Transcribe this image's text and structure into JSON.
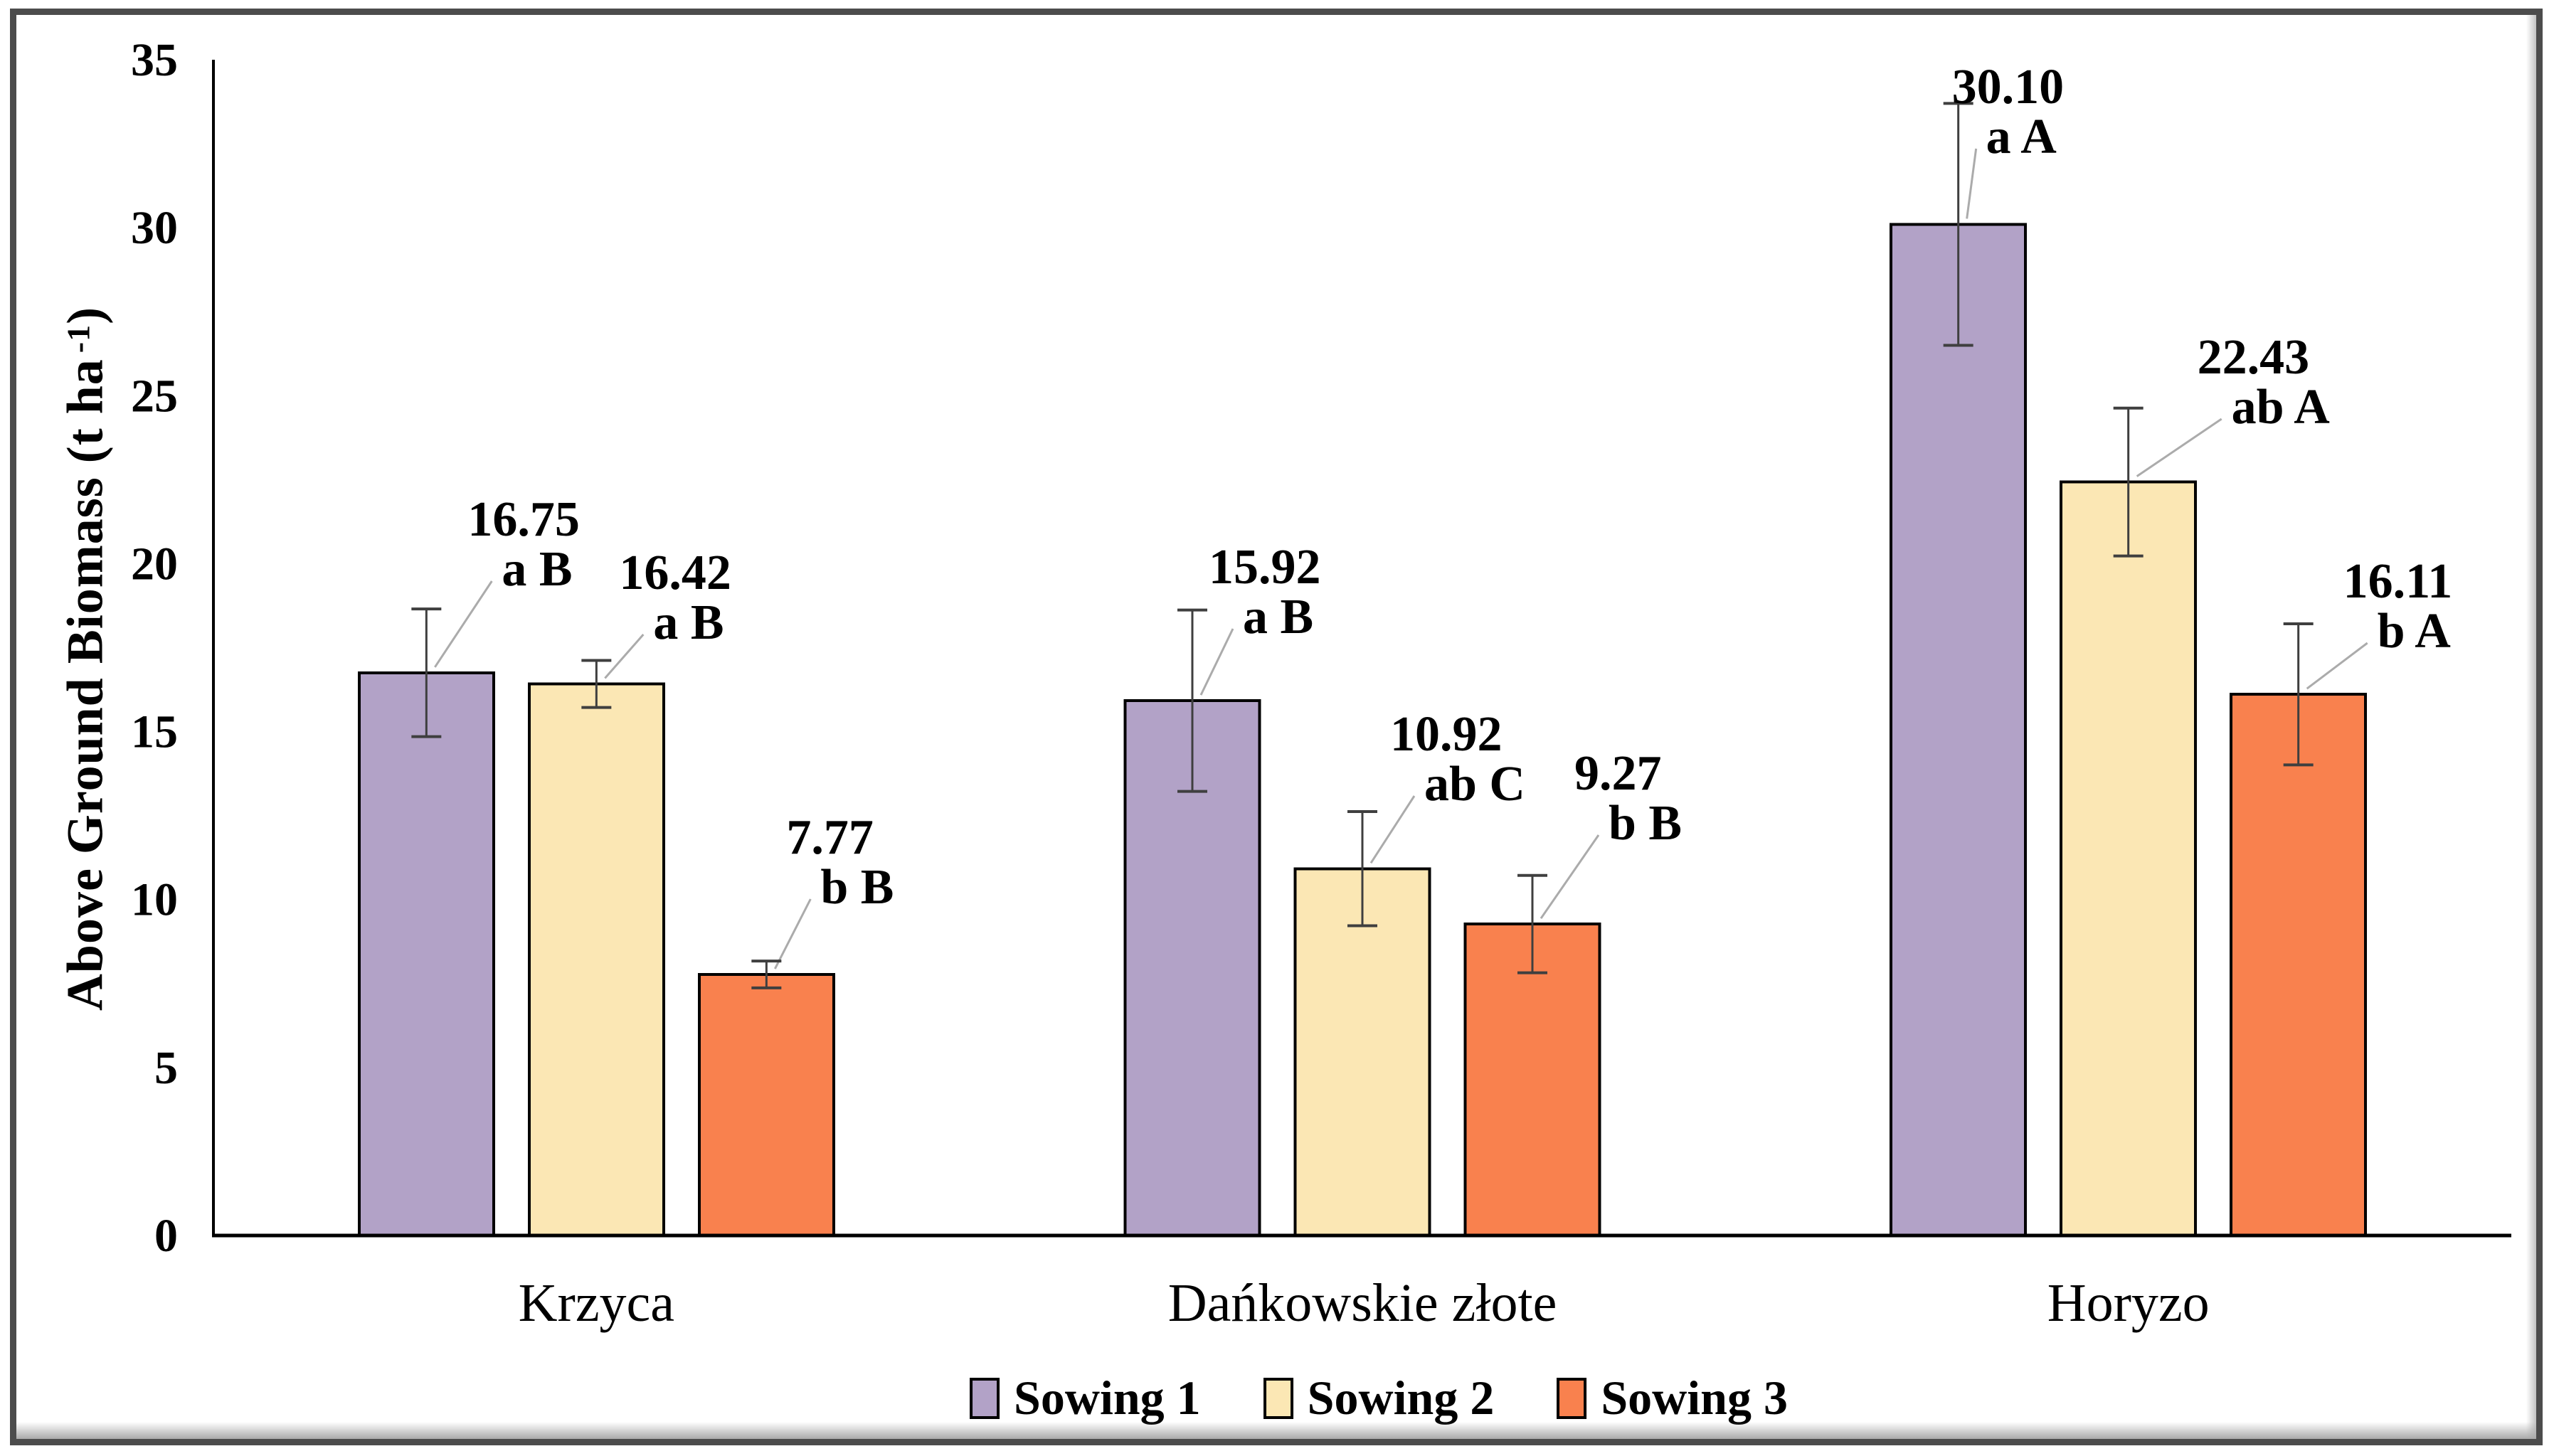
{
  "chart_data": {
    "type": "bar",
    "title": "",
    "ylabel_prefix": "Above Ground Biomass (t ha",
    "ylabel_sup": "-1",
    "ylabel_suffix": ")",
    "xlabel": "",
    "ylim": [
      0,
      35
    ],
    "ytick_step": 5,
    "yticks": [
      "0",
      "5",
      "10",
      "15",
      "20",
      "25",
      "30",
      "35"
    ],
    "grid": "off",
    "legend_position": "bottom",
    "categories": [
      "Krzyca",
      "Dańkowskie złote",
      "Horyzo"
    ],
    "series": [
      {
        "name": "Sowing 1",
        "color": "#b2a2c7",
        "values": [
          16.75,
          15.92,
          30.1
        ],
        "value_labels": [
          "16.75",
          "15.92",
          "30.10"
        ],
        "sig_letters": [
          "a B",
          "a B",
          "a A"
        ],
        "errors": [
          1.9,
          2.7,
          3.6
        ]
      },
      {
        "name": "Sowing 2",
        "color": "#fbe7b4",
        "values": [
          16.42,
          10.92,
          22.43
        ],
        "value_labels": [
          "16.42",
          "10.92",
          "22.43"
        ],
        "sig_letters": [
          "a B",
          "ab C",
          "ab A"
        ],
        "errors": [
          0.7,
          1.7,
          2.2
        ]
      },
      {
        "name": "Sowing 3",
        "color": "#f9814e",
        "values": [
          7.77,
          9.27,
          16.11
        ],
        "value_labels": [
          "7.77",
          "9.27",
          "16.11"
        ],
        "sig_letters": [
          "b B",
          "b B",
          "b A"
        ],
        "errors": [
          0.4,
          1.45,
          2.1
        ]
      }
    ],
    "colors": {
      "bar_border": "#000000",
      "axis": "#000000",
      "error_bar": "#3f3f3f",
      "leader_line": "#ababab",
      "frame_border": "#4c4c4c",
      "background": "#ffffff"
    }
  }
}
